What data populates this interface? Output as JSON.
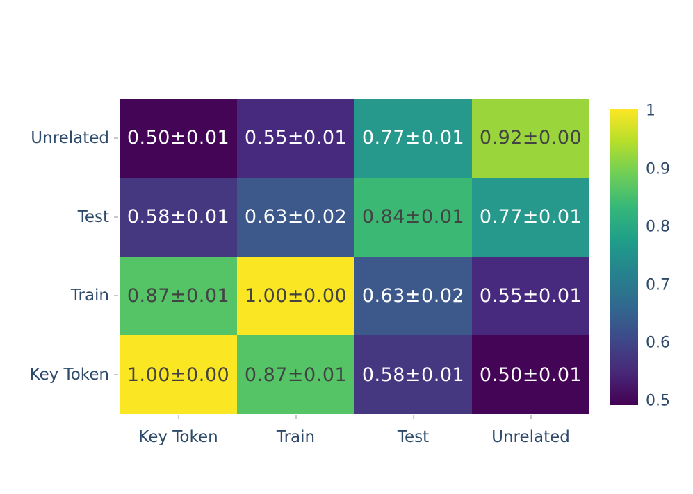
{
  "chart_data": {
    "type": "heatmap",
    "title": "",
    "xlabel": "",
    "ylabel": "",
    "x_categories": [
      "Key Token",
      "Train",
      "Test",
      "Unrelated"
    ],
    "y_categories": [
      "Unrelated",
      "Test",
      "Train",
      "Key Token"
    ],
    "value_range": [
      0.5,
      1.0
    ],
    "colormap": "viridis",
    "rows": [
      {
        "y": "Unrelated",
        "cells": [
          {
            "label": "0.50±0.01",
            "value": 0.5,
            "error": 0.01,
            "bg": "#440556",
            "text": "light"
          },
          {
            "label": "0.55±0.01",
            "value": 0.55,
            "error": 0.01,
            "bg": "#472a7d",
            "text": "light"
          },
          {
            "label": "0.77±0.01",
            "value": 0.77,
            "error": 0.01,
            "bg": "#26998c",
            "text": "light"
          },
          {
            "label": "0.92±0.00",
            "value": 0.92,
            "error": 0.0,
            "bg": "#9bd53c",
            "text": "dark"
          }
        ]
      },
      {
        "y": "Test",
        "cells": [
          {
            "label": "0.58±0.01",
            "value": 0.58,
            "error": 0.01,
            "bg": "#453881",
            "text": "light"
          },
          {
            "label": "0.63±0.02",
            "value": 0.63,
            "error": 0.02,
            "bg": "#3d598b",
            "text": "light"
          },
          {
            "label": "0.84±0.01",
            "value": 0.84,
            "error": 0.01,
            "bg": "#3bb873",
            "text": "dark"
          },
          {
            "label": "0.77±0.01",
            "value": 0.77,
            "error": 0.01,
            "bg": "#26998c",
            "text": "light"
          }
        ]
      },
      {
        "y": "Train",
        "cells": [
          {
            "label": "0.87±0.01",
            "value": 0.87,
            "error": 0.01,
            "bg": "#55c467",
            "text": "dark"
          },
          {
            "label": "1.00±0.00",
            "value": 1.0,
            "error": 0.0,
            "bg": "#fae622",
            "text": "dark"
          },
          {
            "label": "0.63±0.02",
            "value": 0.63,
            "error": 0.02,
            "bg": "#3d598b",
            "text": "light"
          },
          {
            "label": "0.55±0.01",
            "value": 0.55,
            "error": 0.01,
            "bg": "#472a7d",
            "text": "light"
          }
        ]
      },
      {
        "y": "Key Token",
        "cells": [
          {
            "label": "1.00±0.00",
            "value": 1.0,
            "error": 0.0,
            "bg": "#fae622",
            "text": "dark"
          },
          {
            "label": "0.87±0.01",
            "value": 0.87,
            "error": 0.01,
            "bg": "#55c467",
            "text": "dark"
          },
          {
            "label": "0.58±0.01",
            "value": 0.58,
            "error": 0.01,
            "bg": "#453881",
            "text": "light"
          },
          {
            "label": "0.50±0.01",
            "value": 0.5,
            "error": 0.01,
            "bg": "#440556",
            "text": "light"
          }
        ]
      }
    ],
    "colorbar": {
      "tick_labels": [
        "1",
        "0.9",
        "0.8",
        "0.7",
        "0.6",
        "0.5"
      ],
      "gradient_stops_bottom_to_top": [
        "#440154",
        "#482878",
        "#3e4989",
        "#31688e",
        "#26828e",
        "#1f9e89",
        "#35b779",
        "#6ece58",
        "#b5de2b",
        "#fde725"
      ]
    },
    "legend": null,
    "grid": false
  },
  "colors": {
    "axis_label": "#2e4a6b",
    "cell_text_light": "#ffffff",
    "cell_text_dark": "#434343",
    "tick_mark": "#c9c9c9",
    "background": "#ffffff"
  }
}
